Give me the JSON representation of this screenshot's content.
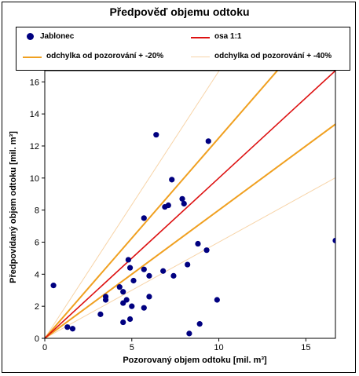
{
  "chart_data": {
    "type": "scatter",
    "title": "Předpověď objemu odtoku",
    "xlabel": "Pozorovaný objem odtoku [mil. m³]",
    "ylabel": "Předpovídaný objem odtoku [mil. m³]",
    "xlim": [
      0,
      16.7
    ],
    "ylim": [
      0,
      16.7
    ],
    "x_ticks": [
      0,
      5,
      10,
      15
    ],
    "y_ticks": [
      0,
      2,
      4,
      6,
      8,
      10,
      12,
      14,
      16
    ],
    "grid": false,
    "legend_position": "top",
    "series": [
      {
        "name": "Jablonec",
        "kind": "scatter",
        "color": "#000080",
        "points": [
          [
            0.5,
            3.3
          ],
          [
            1.3,
            0.7
          ],
          [
            1.6,
            0.6
          ],
          [
            3.2,
            1.5
          ],
          [
            3.5,
            2.6
          ],
          [
            3.5,
            2.4
          ],
          [
            4.3,
            3.2
          ],
          [
            4.5,
            2.9
          ],
          [
            4.5,
            2.2
          ],
          [
            4.5,
            1.0
          ],
          [
            4.7,
            2.4
          ],
          [
            4.8,
            4.9
          ],
          [
            4.9,
            1.2
          ],
          [
            4.9,
            4.4
          ],
          [
            5.0,
            2.0
          ],
          [
            5.1,
            3.6
          ],
          [
            5.7,
            4.3
          ],
          [
            5.7,
            1.9
          ],
          [
            5.7,
            7.5
          ],
          [
            6.0,
            2.6
          ],
          [
            6.0,
            3.9
          ],
          [
            6.4,
            12.7
          ],
          [
            6.8,
            4.2
          ],
          [
            6.9,
            8.2
          ],
          [
            7.1,
            8.3
          ],
          [
            7.3,
            9.9
          ],
          [
            7.4,
            3.9
          ],
          [
            7.9,
            8.7
          ],
          [
            8.0,
            8.4
          ],
          [
            8.2,
            4.6
          ],
          [
            8.3,
            0.3
          ],
          [
            8.8,
            5.9
          ],
          [
            8.9,
            0.9
          ],
          [
            9.3,
            5.5
          ],
          [
            9.4,
            12.3
          ],
          [
            9.9,
            2.4
          ],
          [
            16.7,
            6.1
          ]
        ]
      },
      {
        "name": "osa 1:1",
        "kind": "line",
        "color": "#dd1111",
        "slope": 1.0
      },
      {
        "name": "odchylka od pozorování + -20%",
        "kind": "line",
        "color": "#f0a020",
        "slopes": [
          1.25,
          0.8
        ]
      },
      {
        "name": "odchylka od pozorování + -40%",
        "kind": "line",
        "color": "#f7d4a8",
        "slopes": [
          1.6667,
          0.6
        ]
      }
    ]
  }
}
